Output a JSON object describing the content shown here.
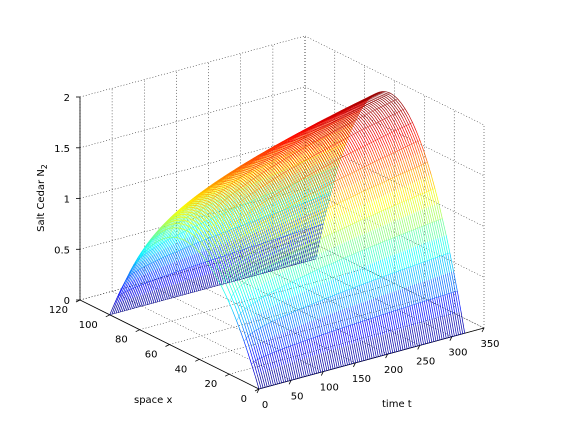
{
  "chart_data": {
    "type": "surface-mesh",
    "title": "",
    "zlabel_main": "Salt Cedar N",
    "zlabel_sub": "2",
    "xlabel": "time t",
    "ylabel": "space x",
    "xlim": [
      0,
      350
    ],
    "ylim": [
      0,
      120
    ],
    "zlim": [
      0,
      2
    ],
    "xticks": [
      0,
      50,
      100,
      150,
      200,
      250,
      300,
      350
    ],
    "yticks": [
      0,
      20,
      40,
      60,
      80,
      100,
      120
    ],
    "zticks": [
      0,
      0.5,
      1,
      1.5,
      2
    ],
    "xtick_labels": [
      "0",
      "50",
      "100",
      "150",
      "200",
      "250",
      "300",
      "350"
    ],
    "ytick_labels": [
      "0",
      "20",
      "40",
      "60",
      "80",
      "100",
      "120"
    ],
    "ztick_labels": [
      "0",
      "0.5",
      "1",
      "1.5",
      "2"
    ],
    "grid": true,
    "colormap": "jet",
    "surface": {
      "t_range": [
        0,
        320
      ],
      "x_range": [
        0,
        100
      ],
      "peak_start": 1.1,
      "peak_end": 2.0,
      "shape": "parabolic-in-space"
    }
  }
}
